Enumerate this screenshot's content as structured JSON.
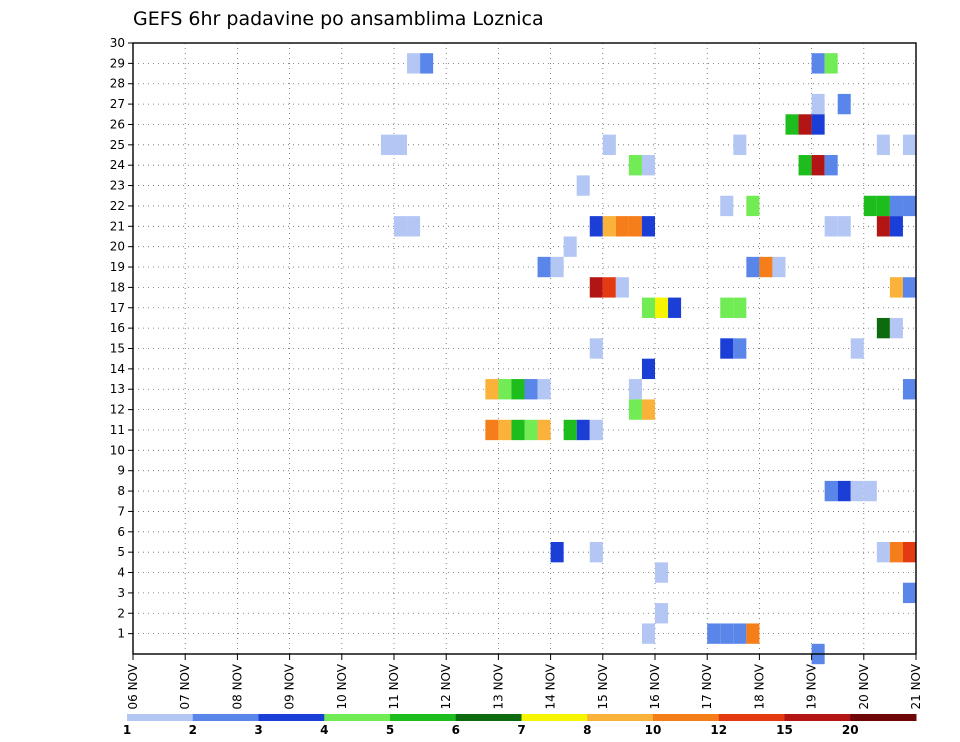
{
  "chart_data": {
    "type": "heatmap",
    "title": "GEFS 6hr padavine po ansamblima Loznica",
    "xlabel": "",
    "ylabel": "",
    "x_range": [
      "06 NOV",
      "21 NOV"
    ],
    "x_ticks": [
      "06 NOV",
      "07 NOV",
      "08 NOV",
      "09 NOV",
      "10 NOV",
      "11 NOV",
      "12 NOV",
      "13 NOV",
      "14 NOV",
      "15 NOV",
      "16 NOV",
      "17 NOV",
      "18 NOV",
      "19 NOV",
      "20 NOV",
      "21 NOV"
    ],
    "y_ticks": [
      "1",
      "2",
      "3",
      "4",
      "5",
      "6",
      "7",
      "8",
      "9",
      "10",
      "11",
      "12",
      "13",
      "14",
      "15",
      "16",
      "17",
      "18",
      "19",
      "20",
      "21",
      "22",
      "23",
      "24",
      "25",
      "26",
      "27",
      "28",
      "29",
      "30"
    ],
    "y_range": [
      0,
      30
    ],
    "grid": true,
    "time_step_hours": 6,
    "legend": {
      "position": "bottom",
      "levels": [
        "1",
        "2",
        "3",
        "4",
        "5",
        "6",
        "7",
        "8",
        "10",
        "12",
        "15",
        "20"
      ],
      "colors": [
        "#b4c7f4",
        "#5a86ea",
        "#1b3fd6",
        "#72ec55",
        "#1ebd1e",
        "#0e6a0e",
        "#f7f400",
        "#fab23a",
        "#f67e1a",
        "#e43a12",
        "#b31414",
        "#6e0808"
      ]
    },
    "cells": [
      {
        "member": 29,
        "time": "11 NOV 06",
        "cls": 1
      },
      {
        "member": 29,
        "time": "11 NOV 12",
        "cls": 2
      },
      {
        "member": 29,
        "time": "19 NOV 00",
        "cls": 2
      },
      {
        "member": 29,
        "time": "19 NOV 06",
        "cls": 4
      },
      {
        "member": 27,
        "time": "19 NOV 00",
        "cls": 1
      },
      {
        "member": 27,
        "time": "19 NOV 12",
        "cls": 2
      },
      {
        "member": 26,
        "time": "18 NOV 12",
        "cls": 5
      },
      {
        "member": 26,
        "time": "18 NOV 18",
        "cls": 11
      },
      {
        "member": 26,
        "time": "19 NOV 00",
        "cls": 3
      },
      {
        "member": 25,
        "time": "10 NOV 18",
        "cls": 1
      },
      {
        "member": 25,
        "time": "11 NOV 00",
        "cls": 1
      },
      {
        "member": 25,
        "time": "15 NOV 00",
        "cls": 1
      },
      {
        "member": 25,
        "time": "17 NOV 12",
        "cls": 1
      },
      {
        "member": 25,
        "time": "20 NOV 06",
        "cls": 1
      },
      {
        "member": 25,
        "time": "20 NOV 18",
        "cls": 1
      },
      {
        "member": 25,
        "time": "21 NOV 00",
        "cls": 2
      },
      {
        "member": 24,
        "time": "15 NOV 12",
        "cls": 4
      },
      {
        "member": 24,
        "time": "15 NOV 18",
        "cls": 1
      },
      {
        "member": 24,
        "time": "18 NOV 18",
        "cls": 5
      },
      {
        "member": 24,
        "time": "19 NOV 00",
        "cls": 11
      },
      {
        "member": 24,
        "time": "19 NOV 06",
        "cls": 2
      },
      {
        "member": 23,
        "time": "14 NOV 12",
        "cls": 1
      },
      {
        "member": 22,
        "time": "17 NOV 06",
        "cls": 1
      },
      {
        "member": 22,
        "time": "17 NOV 18",
        "cls": 4
      },
      {
        "member": 22,
        "time": "20 NOV 00",
        "cls": 5
      },
      {
        "member": 22,
        "time": "20 NOV 06",
        "cls": 5
      },
      {
        "member": 22,
        "time": "20 NOV 12",
        "cls": 2
      },
      {
        "member": 22,
        "time": "20 NOV 18",
        "cls": 2
      },
      {
        "member": 21,
        "time": "11 NOV 00",
        "cls": 1
      },
      {
        "member": 21,
        "time": "11 NOV 06",
        "cls": 1
      },
      {
        "member": 21,
        "time": "14 NOV 18",
        "cls": 3
      },
      {
        "member": 21,
        "time": "15 NOV 00",
        "cls": 8
      },
      {
        "member": 21,
        "time": "15 NOV 06",
        "cls": 9
      },
      {
        "member": 21,
        "time": "15 NOV 12",
        "cls": 9
      },
      {
        "member": 21,
        "time": "15 NOV 18",
        "cls": 3
      },
      {
        "member": 21,
        "time": "19 NOV 06",
        "cls": 1
      },
      {
        "member": 21,
        "time": "19 NOV 12",
        "cls": 1
      },
      {
        "member": 21,
        "time": "20 NOV 06",
        "cls": 11
      },
      {
        "member": 21,
        "time": "20 NOV 12",
        "cls": 3
      },
      {
        "member": 20,
        "time": "14 NOV 06",
        "cls": 1
      },
      {
        "member": 19,
        "time": "13 NOV 18",
        "cls": 2
      },
      {
        "member": 19,
        "time": "14 NOV 00",
        "cls": 1
      },
      {
        "member": 19,
        "time": "17 NOV 18",
        "cls": 2
      },
      {
        "member": 19,
        "time": "18 NOV 00",
        "cls": 9
      },
      {
        "member": 19,
        "time": "18 NOV 06",
        "cls": 1
      },
      {
        "member": 18,
        "time": "14 NOV 18",
        "cls": 11
      },
      {
        "member": 18,
        "time": "15 NOV 00",
        "cls": 10
      },
      {
        "member": 18,
        "time": "15 NOV 06",
        "cls": 1
      },
      {
        "member": 18,
        "time": "20 NOV 12",
        "cls": 8
      },
      {
        "member": 18,
        "time": "20 NOV 18",
        "cls": 2
      },
      {
        "member": 17,
        "time": "15 NOV 18",
        "cls": 4
      },
      {
        "member": 17,
        "time": "16 NOV 00",
        "cls": 7
      },
      {
        "member": 17,
        "time": "16 NOV 06",
        "cls": 3
      },
      {
        "member": 17,
        "time": "17 NOV 06",
        "cls": 4
      },
      {
        "member": 17,
        "time": "17 NOV 12",
        "cls": 4
      },
      {
        "member": 16,
        "time": "20 NOV 06",
        "cls": 6
      },
      {
        "member": 16,
        "time": "20 NOV 12",
        "cls": 1
      },
      {
        "member": 15,
        "time": "14 NOV 18",
        "cls": 1
      },
      {
        "member": 15,
        "time": "17 NOV 06",
        "cls": 3
      },
      {
        "member": 15,
        "time": "17 NOV 12",
        "cls": 2
      },
      {
        "member": 15,
        "time": "19 NOV 18",
        "cls": 1
      },
      {
        "member": 14,
        "time": "15 NOV 18",
        "cls": 3
      },
      {
        "member": 13,
        "time": "12 NOV 18",
        "cls": 8
      },
      {
        "member": 13,
        "time": "13 NOV 00",
        "cls": 4
      },
      {
        "member": 13,
        "time": "13 NOV 06",
        "cls": 5
      },
      {
        "member": 13,
        "time": "13 NOV 12",
        "cls": 2
      },
      {
        "member": 13,
        "time": "13 NOV 18",
        "cls": 1
      },
      {
        "member": 13,
        "time": "15 NOV 12",
        "cls": 1
      },
      {
        "member": 13,
        "time": "20 NOV 18",
        "cls": 2
      },
      {
        "member": 12,
        "time": "15 NOV 12",
        "cls": 4
      },
      {
        "member": 12,
        "time": "15 NOV 18",
        "cls": 8
      },
      {
        "member": 11,
        "time": "12 NOV 18",
        "cls": 9
      },
      {
        "member": 11,
        "time": "13 NOV 00",
        "cls": 8
      },
      {
        "member": 11,
        "time": "13 NOV 06",
        "cls": 5
      },
      {
        "member": 11,
        "time": "13 NOV 12",
        "cls": 4
      },
      {
        "member": 11,
        "time": "13 NOV 18",
        "cls": 8
      },
      {
        "member": 11,
        "time": "14 NOV 06",
        "cls": 5
      },
      {
        "member": 11,
        "time": "14 NOV 12",
        "cls": 3
      },
      {
        "member": 11,
        "time": "14 NOV 18",
        "cls": 1
      },
      {
        "member": 8,
        "time": "19 NOV 06",
        "cls": 2
      },
      {
        "member": 8,
        "time": "19 NOV 12",
        "cls": 3
      },
      {
        "member": 8,
        "time": "19 NOV 18",
        "cls": 1
      },
      {
        "member": 8,
        "time": "20 NOV 00",
        "cls": 1
      },
      {
        "member": 5,
        "time": "14 NOV 00",
        "cls": 3
      },
      {
        "member": 5,
        "time": "14 NOV 18",
        "cls": 1
      },
      {
        "member": 5,
        "time": "20 NOV 06",
        "cls": 1
      },
      {
        "member": 5,
        "time": "20 NOV 12",
        "cls": 9
      },
      {
        "member": 5,
        "time": "20 NOV 18",
        "cls": 10
      },
      {
        "member": 5,
        "time": "21 NOV 00",
        "cls": 1
      },
      {
        "member": 4,
        "time": "16 NOV 00",
        "cls": 1
      },
      {
        "member": 3,
        "time": "20 NOV 18",
        "cls": 2
      },
      {
        "member": 3,
        "time": "21 NOV 00",
        "cls": 1
      },
      {
        "member": 2,
        "time": "16 NOV 00",
        "cls": 1
      },
      {
        "member": 1,
        "time": "15 NOV 18",
        "cls": 1
      },
      {
        "member": 1,
        "time": "17 NOV 00",
        "cls": 2
      },
      {
        "member": 1,
        "time": "17 NOV 06",
        "cls": 2
      },
      {
        "member": 1,
        "time": "17 NOV 12",
        "cls": 2
      },
      {
        "member": 1,
        "time": "17 NOV 18",
        "cls": 9
      },
      {
        "member": 0,
        "time": "19 NOV 00",
        "cls": 2
      }
    ]
  }
}
